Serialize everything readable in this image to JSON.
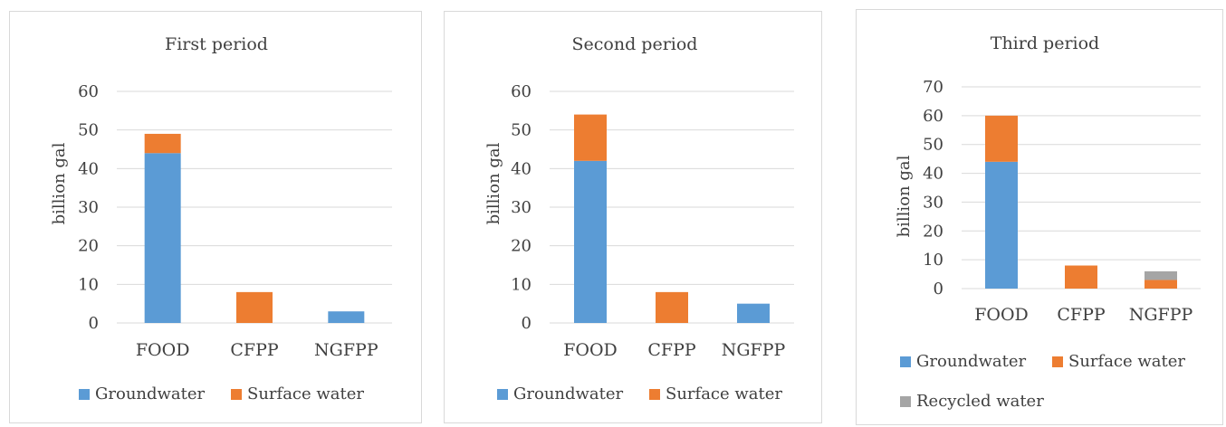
{
  "colors": {
    "groundwater": "#5b9bd5",
    "surface": "#ed7d31",
    "recycled": "#a5a5a5"
  },
  "legend": {
    "groundwater": "Groundwater",
    "surface": "Surface water",
    "recycled": "Recycled water"
  },
  "chart_data": [
    {
      "type": "bar",
      "stacked": true,
      "title": "First period",
      "ylabel": "billion gal",
      "ylim": [
        0,
        60
      ],
      "yticks": [
        0,
        10,
        20,
        30,
        40,
        50,
        60
      ],
      "categories": [
        "FOOD",
        "CFPP",
        "NGFPP"
      ],
      "grid": true,
      "legend_position": "bottom",
      "series": [
        {
          "name": "Groundwater",
          "color": "#5b9bd5",
          "values": [
            44,
            0,
            3
          ]
        },
        {
          "name": "Surface water",
          "color": "#ed7d31",
          "values": [
            5,
            8,
            0
          ]
        }
      ]
    },
    {
      "type": "bar",
      "stacked": true,
      "title": "Second period",
      "ylabel": "billion gal",
      "ylim": [
        0,
        60
      ],
      "yticks": [
        0,
        10,
        20,
        30,
        40,
        50,
        60
      ],
      "categories": [
        "FOOD",
        "CFPP",
        "NGFPP"
      ],
      "grid": true,
      "legend_position": "bottom",
      "series": [
        {
          "name": "Groundwater",
          "color": "#5b9bd5",
          "values": [
            42,
            0,
            5
          ]
        },
        {
          "name": "Surface water",
          "color": "#ed7d31",
          "values": [
            12,
            8,
            0
          ]
        }
      ]
    },
    {
      "type": "bar",
      "stacked": true,
      "title": "Third period",
      "ylabel": "billion gal",
      "ylim": [
        0,
        70
      ],
      "yticks": [
        0,
        10,
        20,
        30,
        40,
        50,
        60,
        70
      ],
      "categories": [
        "FOOD",
        "CFPP",
        "NGFPP"
      ],
      "grid": true,
      "legend_position": "bottom",
      "series": [
        {
          "name": "Groundwater",
          "color": "#5b9bd5",
          "values": [
            44,
            0,
            0
          ]
        },
        {
          "name": "Surface water",
          "color": "#ed7d31",
          "values": [
            16,
            8,
            3
          ]
        },
        {
          "name": "Recycled water",
          "color": "#a5a5a5",
          "values": [
            0,
            0,
            3
          ]
        }
      ]
    }
  ]
}
